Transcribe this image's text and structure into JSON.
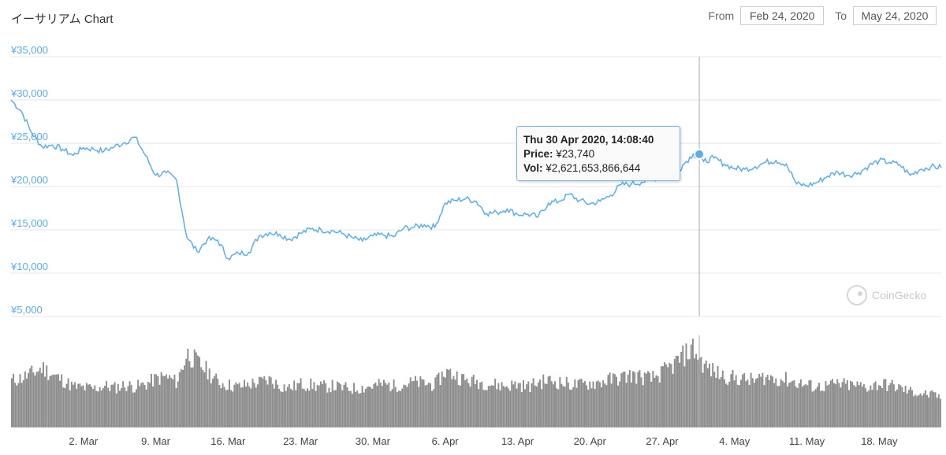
{
  "header": {
    "title": "イーサリアム Chart",
    "from_label": "From",
    "from_value": "Feb 24, 2020",
    "to_label": "To",
    "to_value": "May 24, 2020"
  },
  "watermark": "CoinGecko",
  "colors": {
    "price_line": "#5aaef0",
    "volume_bars": "#8c8c8c",
    "gridlines": "#e6e6e6",
    "crosshair": "#aaaaaa"
  },
  "tooltip": {
    "date": "Thu 30 Apr 2020, 14:08:40",
    "price_label": "Price:",
    "price_value": "¥23,740",
    "vol_label": "Vol:",
    "vol_value": "¥2,621,653,866,644"
  },
  "chart_data": {
    "type": "line",
    "title": "イーサリアム Chart",
    "x_start": "2020-02-24",
    "x_end": "2020-05-24",
    "ylim": [
      5000,
      35000
    ],
    "y_tick_labels": [
      "¥35,000",
      "¥30,000",
      "¥25,000",
      "¥20,000",
      "¥15,000",
      "¥10,000",
      "¥5,000"
    ],
    "y_tick_values": [
      35000,
      30000,
      25000,
      20000,
      15000,
      10000,
      5000
    ],
    "x_tick_labels": [
      "2. Mar",
      "9. Mar",
      "16. Mar",
      "23. Mar",
      "30. Mar",
      "6. Apr",
      "13. Apr",
      "20. Apr",
      "27. Apr",
      "4. May",
      "11. May",
      "18. May"
    ],
    "x_tick_dates": [
      "2020-03-02",
      "2020-03-09",
      "2020-03-16",
      "2020-03-23",
      "2020-03-30",
      "2020-04-06",
      "2020-04-13",
      "2020-04-20",
      "2020-04-27",
      "2020-05-04",
      "2020-05-11",
      "2020-05-18"
    ],
    "grid": true,
    "highlight": {
      "date": "2020-04-30 14:08",
      "price": 23740,
      "volume": 2621653866644
    },
    "series": [
      {
        "name": "Price",
        "points": [
          [
            "2020-02-24",
            30000
          ],
          [
            "2020-02-25",
            28700
          ],
          [
            "2020-02-26",
            26200
          ],
          [
            "2020-02-27",
            24600
          ],
          [
            "2020-02-28",
            24800
          ],
          [
            "2020-02-29",
            24300
          ],
          [
            "2020-03-01",
            23600
          ],
          [
            "2020-03-02",
            24500
          ],
          [
            "2020-03-03",
            24300
          ],
          [
            "2020-03-04",
            24100
          ],
          [
            "2020-03-05",
            24600
          ],
          [
            "2020-03-06",
            25100
          ],
          [
            "2020-03-07",
            25700
          ],
          [
            "2020-03-08",
            23600
          ],
          [
            "2020-03-09",
            21300
          ],
          [
            "2020-03-10",
            21600
          ],
          [
            "2020-03-11",
            20800
          ],
          [
            "2020-03-12",
            14200
          ],
          [
            "2020-03-13",
            12500
          ],
          [
            "2020-03-14",
            13900
          ],
          [
            "2020-03-15",
            13800
          ],
          [
            "2020-03-16",
            11700
          ],
          [
            "2020-03-17",
            12300
          ],
          [
            "2020-03-18",
            12400
          ],
          [
            "2020-03-19",
            14300
          ],
          [
            "2020-03-20",
            14700
          ],
          [
            "2020-03-21",
            14500
          ],
          [
            "2020-03-22",
            13900
          ],
          [
            "2020-03-23",
            14600
          ],
          [
            "2020-03-24",
            15100
          ],
          [
            "2020-03-25",
            15000
          ],
          [
            "2020-03-26",
            14900
          ],
          [
            "2020-03-27",
            14600
          ],
          [
            "2020-03-28",
            14100
          ],
          [
            "2020-03-29",
            13700
          ],
          [
            "2020-03-30",
            14300
          ],
          [
            "2020-03-31",
            14400
          ],
          [
            "2020-04-01",
            14200
          ],
          [
            "2020-04-02",
            15200
          ],
          [
            "2020-04-03",
            15300
          ],
          [
            "2020-04-04",
            15600
          ],
          [
            "2020-04-05",
            15300
          ],
          [
            "2020-04-06",
            18100
          ],
          [
            "2020-04-07",
            18400
          ],
          [
            "2020-04-08",
            18600
          ],
          [
            "2020-04-09",
            18300
          ],
          [
            "2020-04-10",
            16900
          ],
          [
            "2020-04-11",
            17000
          ],
          [
            "2020-04-12",
            17400
          ],
          [
            "2020-04-13",
            16800
          ],
          [
            "2020-04-14",
            16800
          ],
          [
            "2020-04-15",
            16500
          ],
          [
            "2020-04-16",
            18100
          ],
          [
            "2020-04-17",
            18300
          ],
          [
            "2020-04-18",
            19100
          ],
          [
            "2020-04-19",
            18400
          ],
          [
            "2020-04-20",
            18000
          ],
          [
            "2020-04-21",
            18300
          ],
          [
            "2020-04-22",
            19000
          ],
          [
            "2020-04-23",
            20200
          ],
          [
            "2020-04-24",
            20300
          ],
          [
            "2020-04-25",
            20500
          ],
          [
            "2020-04-26",
            20900
          ],
          [
            "2020-04-27",
            21100
          ],
          [
            "2020-04-28",
            21000
          ],
          [
            "2020-04-29",
            22500
          ],
          [
            "2020-04-30",
            23740
          ],
          [
            "2020-05-01",
            22900
          ],
          [
            "2020-05-02",
            23300
          ],
          [
            "2020-05-03",
            22600
          ],
          [
            "2020-05-04",
            22100
          ],
          [
            "2020-05-05",
            22000
          ],
          [
            "2020-05-06",
            22300
          ],
          [
            "2020-05-07",
            22800
          ],
          [
            "2020-05-08",
            23000
          ],
          [
            "2020-05-09",
            22600
          ],
          [
            "2020-05-10",
            20300
          ],
          [
            "2020-05-11",
            20100
          ],
          [
            "2020-05-12",
            20500
          ],
          [
            "2020-05-13",
            21200
          ],
          [
            "2020-05-14",
            21700
          ],
          [
            "2020-05-15",
            21300
          ],
          [
            "2020-05-16",
            21600
          ],
          [
            "2020-05-17",
            22400
          ],
          [
            "2020-05-18",
            23000
          ],
          [
            "2020-05-19",
            22800
          ],
          [
            "2020-05-20",
            22500
          ],
          [
            "2020-05-21",
            21300
          ],
          [
            "2020-05-22",
            22000
          ],
          [
            "2020-05-23",
            22300
          ],
          [
            "2020-05-24",
            22200
          ]
        ]
      },
      {
        "name": "Vol",
        "relative_levels": [
          0.52,
          0.55,
          0.6,
          0.66,
          0.58,
          0.52,
          0.45,
          0.44,
          0.43,
          0.46,
          0.44,
          0.47,
          0.45,
          0.48,
          0.54,
          0.56,
          0.5,
          0.82,
          0.72,
          0.62,
          0.5,
          0.47,
          0.45,
          0.48,
          0.5,
          0.53,
          0.46,
          0.44,
          0.48,
          0.47,
          0.45,
          0.46,
          0.44,
          0.43,
          0.44,
          0.46,
          0.48,
          0.46,
          0.48,
          0.5,
          0.49,
          0.47,
          0.62,
          0.58,
          0.52,
          0.51,
          0.49,
          0.47,
          0.46,
          0.48,
          0.45,
          0.5,
          0.52,
          0.5,
          0.48,
          0.47,
          0.49,
          0.5,
          0.53,
          0.55,
          0.58,
          0.56,
          0.54,
          0.6,
          0.68,
          0.78,
          0.88,
          0.7,
          0.62,
          0.57,
          0.55,
          0.53,
          0.52,
          0.56,
          0.54,
          0.53,
          0.5,
          0.47,
          0.45,
          0.46,
          0.48,
          0.47,
          0.46,
          0.45,
          0.48,
          0.47,
          0.44,
          0.4,
          0.38,
          0.36,
          0.34
        ]
      }
    ]
  }
}
